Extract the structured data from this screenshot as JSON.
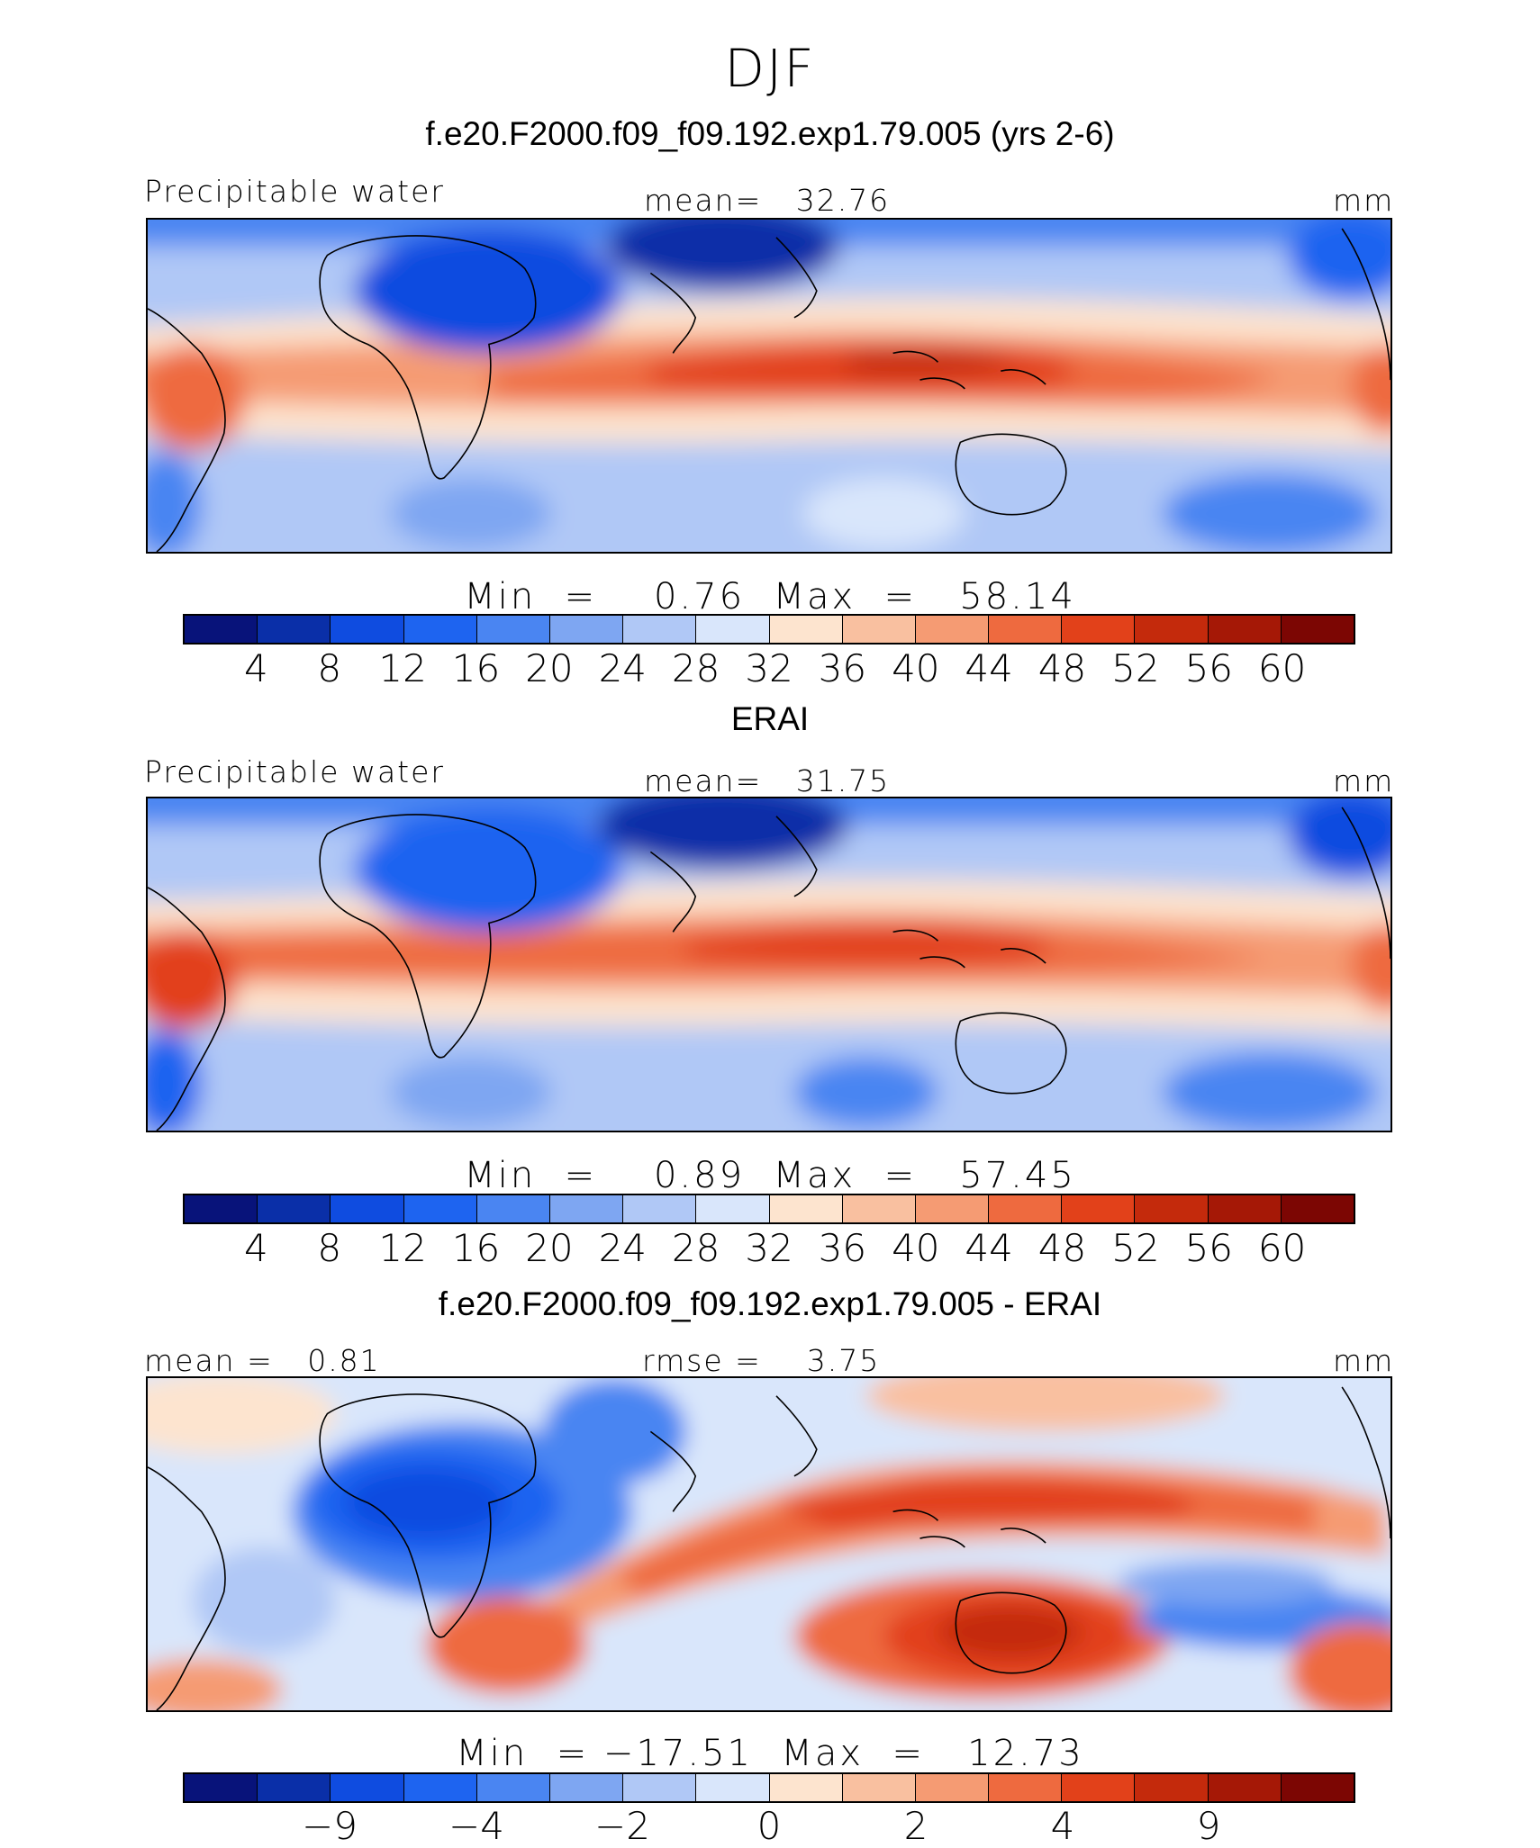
{
  "figure": {
    "season": "DJF"
  },
  "colors": [
    "#08137a",
    "#0a2fa8",
    "#0f4ce0",
    "#1e64f0",
    "#4a85f2",
    "#7ea6f2",
    "#b0c8f6",
    "#d9e6fb",
    "#fde4cf",
    "#f9c0a0",
    "#f59b73",
    "#ee6a3f",
    "#e2411a",
    "#c42a0c",
    "#a51806",
    "#7c0603"
  ],
  "panels": [
    {
      "title": "f.e20.F2000.f09_f09.192.exp1.79.005 (yrs 2-6)",
      "left_label": "Precipitable water",
      "center_label": "mean=   32.76",
      "units": "mm",
      "minmax": "Min  =    0.76  Max  =   58.14",
      "colorbar_ticks": [
        "4",
        "8",
        "12",
        "16",
        "20",
        "24",
        "28",
        "32",
        "36",
        "40",
        "44",
        "48",
        "52",
        "56",
        "60"
      ]
    },
    {
      "title": "ERAI",
      "left_label": "Precipitable water",
      "center_label": "mean=   31.75",
      "units": "mm",
      "minmax": "Min  =    0.89  Max  =   57.45",
      "colorbar_ticks": [
        "4",
        "8",
        "12",
        "16",
        "20",
        "24",
        "28",
        "32",
        "36",
        "40",
        "44",
        "48",
        "52",
        "56",
        "60"
      ]
    },
    {
      "title": "f.e20.F2000.f09_f09.192.exp1.79.005 - ERAI",
      "left_label": "mean =   0.81",
      "center_label": "rmse =    3.75",
      "units": "mm",
      "minmax": "Min  = −17.51  Max  =   12.73",
      "colorbar_ticks": [
        "−9",
        "−4",
        "−2",
        "0",
        "2",
        "4",
        "9"
      ]
    }
  ]
}
